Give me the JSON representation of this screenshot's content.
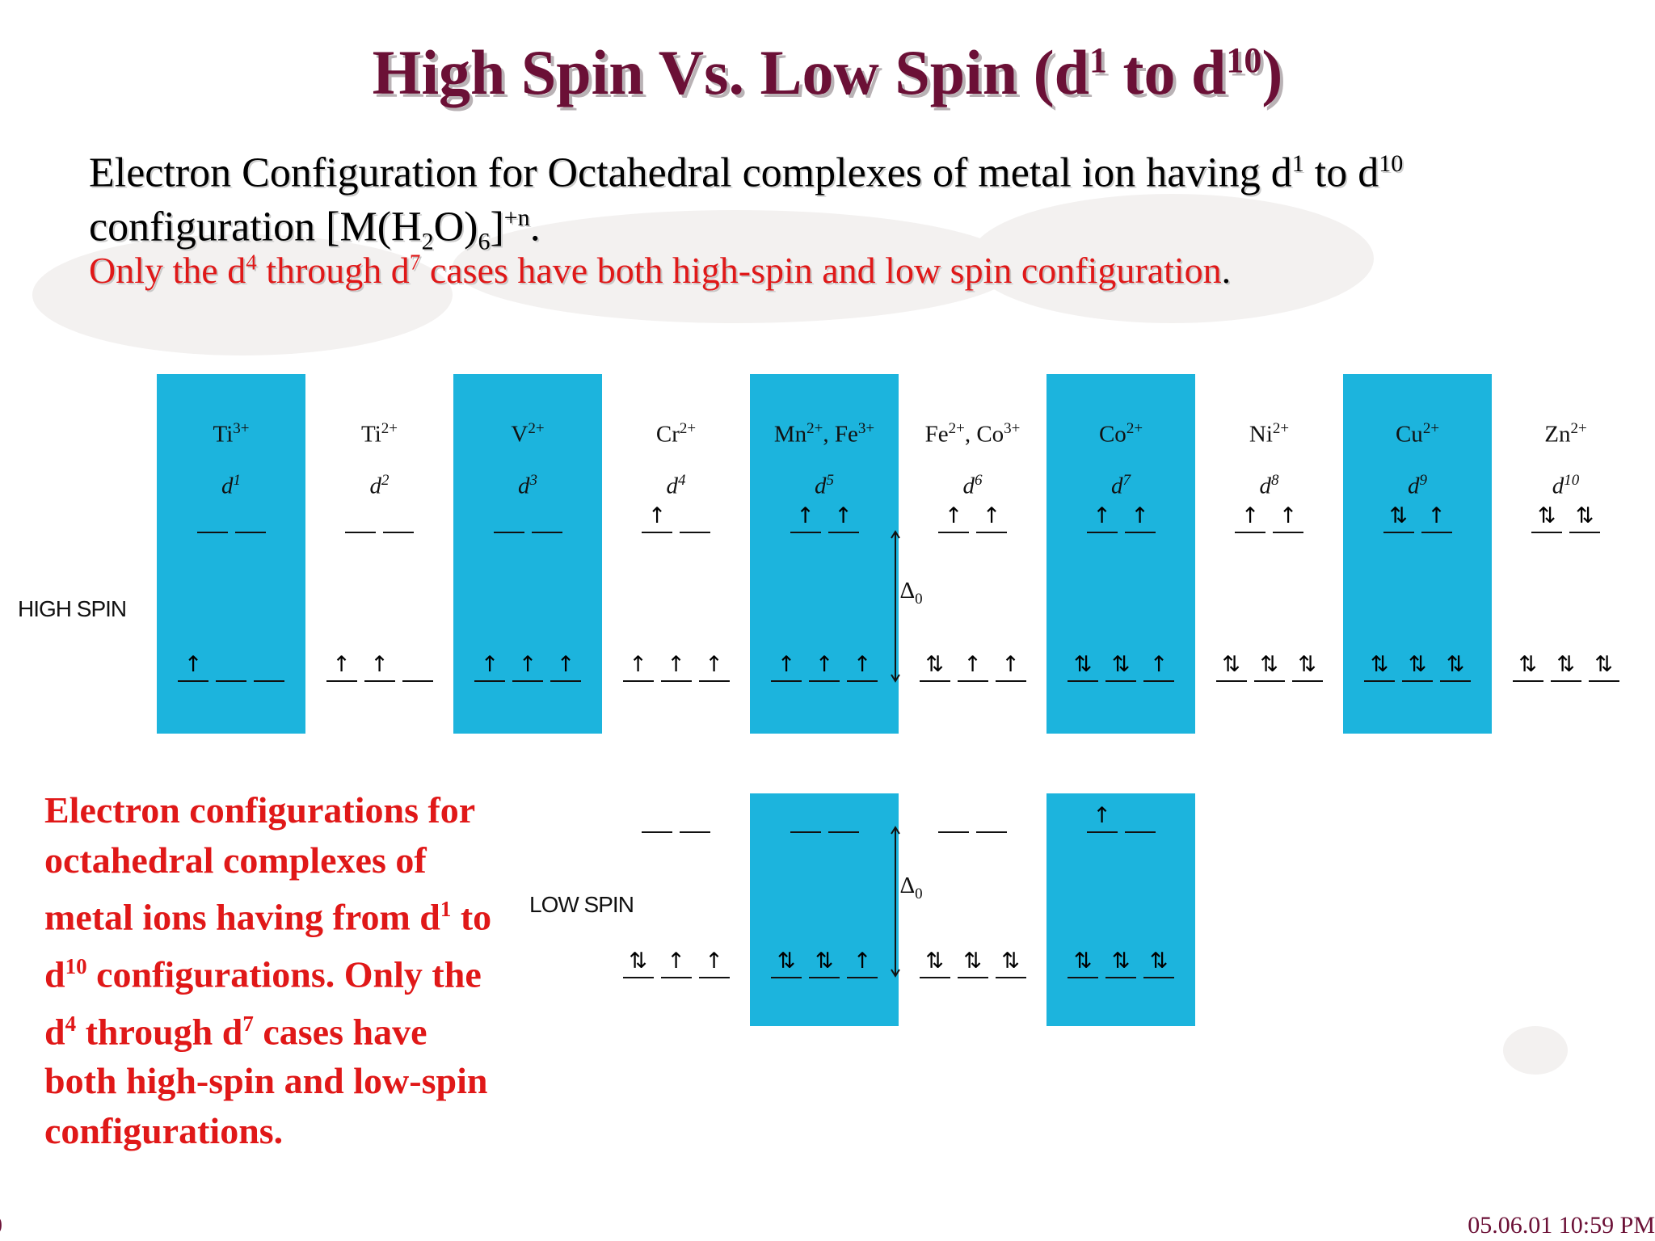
{
  "slide": {
    "title_main": "High Spin Vs. Low Spin (d",
    "title_sup1": "1",
    "title_mid": " to d",
    "title_sup2": "10",
    "title_end": ")",
    "subtitle_1": "Electron Configuration for Octahedral complexes of metal ion having d",
    "subtitle_sup1": "1",
    "subtitle_2": " to d",
    "subtitle_sup2": "10",
    "subtitle_3": " configuration [M(H",
    "subtitle_sub1": "2",
    "subtitle_4": "O)",
    "subtitle_sub2": "6",
    "subtitle_5": "]",
    "subtitle_sup3": "+n",
    "subtitle_6": ".",
    "note_1": "Only the d",
    "note_sup1": "4",
    "note_2": " through d",
    "note_sup2": "7",
    "note_3": " cases have both high-spin and low spin configuration",
    "note_end": ".",
    "explain_1": "Electron configurations for octahedral complexes of metal ions having from d",
    "explain_sup1": "1",
    "explain_2": " to d",
    "explain_sup2": "10",
    "explain_3": " configurations.  Only the d",
    "explain_sup3": "4",
    "explain_4": " through d",
    "explain_sup4": "7",
    "explain_5": " cases have both high-spin and low-spin configurations.",
    "timestamp": "05.06.01 10:59 PM",
    "page_fragment": "0"
  },
  "diagram": {
    "high_spin_label": "HIGH SPIN",
    "low_spin_label": "LOW SPIN",
    "delta_label": "Δ",
    "delta_sub": "0",
    "columns": [
      {
        "ions": [
          {
            "sym": "Ti",
            "chg": "3+"
          }
        ],
        "d": "1",
        "eg": [
          "",
          ""
        ],
        "t2g": [
          "↑",
          "",
          ""
        ],
        "panel": true
      },
      {
        "ions": [
          {
            "sym": "Ti",
            "chg": "2+"
          }
        ],
        "d": "2",
        "eg": [
          "",
          ""
        ],
        "t2g": [
          "↑",
          "↑",
          ""
        ],
        "panel": false
      },
      {
        "ions": [
          {
            "sym": "V",
            "chg": "2+"
          }
        ],
        "d": "3",
        "eg": [
          "",
          ""
        ],
        "t2g": [
          "↑",
          "↑",
          "↑"
        ],
        "panel": true
      },
      {
        "ions": [
          {
            "sym": "Cr",
            "chg": "2+"
          }
        ],
        "d": "4",
        "eg": [
          "↑",
          ""
        ],
        "t2g": [
          "↑",
          "↑",
          "↑"
        ],
        "panel": false
      },
      {
        "ions": [
          {
            "sym": "Mn",
            "chg": "2+"
          },
          {
            "sym": "Fe",
            "chg": "3+"
          }
        ],
        "d": "5",
        "eg": [
          "↑",
          "↑"
        ],
        "t2g": [
          "↑",
          "↑",
          "↑"
        ],
        "panel": true
      },
      {
        "ions": [
          {
            "sym": "Fe",
            "chg": "2+"
          },
          {
            "sym": "Co",
            "chg": "3+"
          }
        ],
        "d": "6",
        "eg": [
          "↑",
          "↑"
        ],
        "t2g": [
          "⇅",
          "↑",
          "↑"
        ],
        "panel": false
      },
      {
        "ions": [
          {
            "sym": "Co",
            "chg": "2+"
          }
        ],
        "d": "7",
        "eg": [
          "↑",
          "↑"
        ],
        "t2g": [
          "⇅",
          "⇅",
          "↑"
        ],
        "panel": true
      },
      {
        "ions": [
          {
            "sym": "Ni",
            "chg": "2+"
          }
        ],
        "d": "8",
        "eg": [
          "↑",
          "↑"
        ],
        "t2g": [
          "⇅",
          "⇅",
          "⇅"
        ],
        "panel": false
      },
      {
        "ions": [
          {
            "sym": "Cu",
            "chg": "2+"
          }
        ],
        "d": "9",
        "eg": [
          "⇅",
          "↑"
        ],
        "t2g": [
          "⇅",
          "⇅",
          "⇅"
        ],
        "panel": true
      },
      {
        "ions": [
          {
            "sym": "Zn",
            "chg": "2+"
          }
        ],
        "d": "10",
        "eg": [
          "⇅",
          "⇅"
        ],
        "t2g": [
          "⇅",
          "⇅",
          "⇅"
        ],
        "panel": false
      }
    ],
    "low_spin": [
      {
        "col": 3,
        "eg": [
          "",
          ""
        ],
        "t2g": [
          "⇅",
          "↑",
          "↑"
        ],
        "panel": false
      },
      {
        "col": 4,
        "eg": [
          "",
          ""
        ],
        "t2g": [
          "⇅",
          "⇅",
          "↑"
        ],
        "panel": true
      },
      {
        "col": 5,
        "eg": [
          "",
          ""
        ],
        "t2g": [
          "⇅",
          "⇅",
          "⇅"
        ],
        "panel": false
      },
      {
        "col": 6,
        "eg": [
          "↑",
          ""
        ],
        "t2g": [
          "⇅",
          "⇅",
          "⇅"
        ],
        "panel": true
      }
    ],
    "panel_color": "#1cb4dd",
    "title_color": "#6b1036",
    "accent_red": "#e01818"
  }
}
